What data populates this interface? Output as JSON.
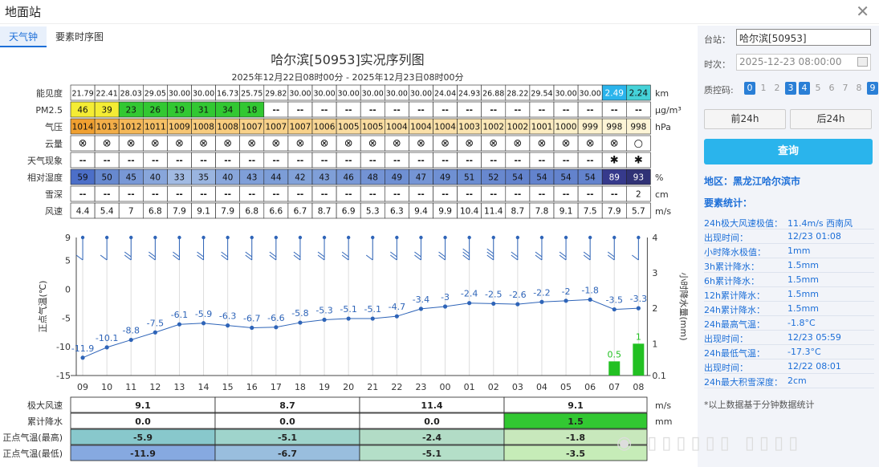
{
  "window": {
    "title": "地面站"
  },
  "tabs": [
    "天气钟",
    "要素时序图"
  ],
  "chart_title": "哈尔滨[50953]实况序列图",
  "chart_subtitle": "2025年12月22日08时00分 - 2025年12月23日08时00分",
  "hours": [
    "09",
    "10",
    "11",
    "12",
    "13",
    "14",
    "15",
    "16",
    "17",
    "18",
    "19",
    "20",
    "21",
    "22",
    "23",
    "00",
    "01",
    "02",
    "03",
    "04",
    "05",
    "06",
    "07",
    "08"
  ],
  "table_rows": [
    {
      "label": "能见度",
      "unit": "km",
      "values": [
        "21.79",
        "22.41",
        "28.03",
        "29.05",
        "30.00",
        "30.00",
        "16.73",
        "25.75",
        "29.82",
        "30.00",
        "30.00",
        "30.00",
        "30.00",
        "30.00",
        "30.00",
        "24.04",
        "24.93",
        "26.88",
        "28.22",
        "29.54",
        "30.00",
        "30.00",
        "2.49",
        "2.24"
      ],
      "colors": [
        "#fff",
        "#fff",
        "#fff",
        "#fff",
        "#fff",
        "#fff",
        "#fff",
        "#fff",
        "#fff",
        "#fff",
        "#fff",
        "#fff",
        "#fff",
        "#fff",
        "#fff",
        "#fff",
        "#fff",
        "#fff",
        "#fff",
        "#fff",
        "#fff",
        "#fff",
        "#2ab4ec",
        "#45d2d8"
      ]
    },
    {
      "label": "PM2.5",
      "unit": "μg/m³",
      "values": [
        "46",
        "39",
        "23",
        "26",
        "19",
        "31",
        "34",
        "18",
        "--",
        "--",
        "--",
        "--",
        "--",
        "--",
        "--",
        "--",
        "--",
        "--",
        "--",
        "--",
        "--",
        "--",
        "--",
        "--"
      ],
      "colors": [
        "#f4ec34",
        "#f4ec34",
        "#32c832",
        "#32c832",
        "#32c832",
        "#32c832",
        "#32c832",
        "#32c832",
        "#fff",
        "#fff",
        "#fff",
        "#fff",
        "#fff",
        "#fff",
        "#fff",
        "#fff",
        "#fff",
        "#fff",
        "#fff",
        "#fff",
        "#fff",
        "#fff",
        "#fff",
        "#fff"
      ]
    },
    {
      "label": "气压",
      "unit": "hPa",
      "values": [
        "1014",
        "1013",
        "1012",
        "1011",
        "1009",
        "1008",
        "1008",
        "1007",
        "1007",
        "1007",
        "1006",
        "1005",
        "1005",
        "1004",
        "1004",
        "1004",
        "1003",
        "1002",
        "1002",
        "1001",
        "1000",
        "999",
        "998",
        "998"
      ],
      "colors": [
        "#f0a030",
        "#f3ae48",
        "#f5b858",
        "#f5bf64",
        "#f7c673",
        "#f8cc7e",
        "#f8cc7e",
        "#f9d28a",
        "#f9d28a",
        "#f9d28a",
        "#f9d796",
        "#fadca0",
        "#fadca0",
        "#fbe0a8",
        "#fbe0a8",
        "#fbe0a8",
        "#fbe4b0",
        "#fce8b8",
        "#fce8b8",
        "#fcecc0",
        "#fcf0c8",
        "#fdf2ce",
        "#fdf5d6",
        "#fdf5d6"
      ]
    },
    {
      "label": "云量",
      "unit": "",
      "values": [
        "⊗",
        "⊗",
        "⊗",
        "⊗",
        "⊗",
        "⊗",
        "⊗",
        "⊗",
        "⊗",
        "⊗",
        "⊗",
        "⊗",
        "⊗",
        "⊗",
        "⊗",
        "⊗",
        "⊗",
        "⊗",
        "⊗",
        "⊗",
        "⊗",
        "⊗",
        "⊗",
        "○"
      ],
      "colors": []
    },
    {
      "label": "天气现象",
      "unit": "",
      "values": [
        "--",
        "--",
        "--",
        "--",
        "--",
        "--",
        "--",
        "--",
        "--",
        "--",
        "--",
        "--",
        "--",
        "--",
        "--",
        "--",
        "--",
        "--",
        "--",
        "--",
        "--",
        "--",
        "✱",
        "✱"
      ],
      "colors": []
    },
    {
      "label": "相对湿度",
      "unit": "%",
      "values": [
        "59",
        "50",
        "45",
        "40",
        "33",
        "35",
        "40",
        "43",
        "44",
        "42",
        "43",
        "46",
        "48",
        "49",
        "47",
        "49",
        "51",
        "52",
        "54",
        "54",
        "54",
        "54",
        "89",
        "93"
      ],
      "colors": [
        "#4c6fc8",
        "#6789cf",
        "#7898d6",
        "#88a6db",
        "#a2bbe3",
        "#9ab5e0",
        "#88a6db",
        "#7f9fd8",
        "#7c9dd7",
        "#82a2d9",
        "#7f9fd8",
        "#7898d6",
        "#7393d4",
        "#6f90d3",
        "#7595d5",
        "#6f90d3",
        "#6b8dd1",
        "#6888cf",
        "#6383cd",
        "#6383cd",
        "#6383cd",
        "#6383cd",
        "#363a8c",
        "#303276"
      ]
    },
    {
      "label": "雪深",
      "unit": "cm",
      "values": [
        "--",
        "--",
        "--",
        "--",
        "--",
        "--",
        "--",
        "--",
        "--",
        "--",
        "--",
        "--",
        "--",
        "--",
        "--",
        "--",
        "--",
        "--",
        "--",
        "--",
        "--",
        "--",
        "--",
        "2"
      ],
      "colors": []
    },
    {
      "label": "风速",
      "unit": "m/s",
      "values": [
        "4.4",
        "5.4",
        "7",
        "6.8",
        "7.9",
        "9.1",
        "7.9",
        "6.8",
        "6.6",
        "6.7",
        "8.7",
        "6.9",
        "5.3",
        "6.3",
        "9.4",
        "9.9",
        "10.4",
        "11.4",
        "8.7",
        "7.8",
        "9.1",
        "7.5",
        "7.9",
        "5.7"
      ],
      "colors": []
    }
  ],
  "chart_data": {
    "type": "line",
    "x": [
      "09",
      "10",
      "11",
      "12",
      "13",
      "14",
      "15",
      "16",
      "17",
      "18",
      "19",
      "20",
      "21",
      "22",
      "23",
      "00",
      "01",
      "02",
      "03",
      "04",
      "05",
      "06",
      "07",
      "08"
    ],
    "temperature": [
      -11.9,
      -10.1,
      -8.8,
      -7.5,
      -6.1,
      -5.9,
      -6.3,
      -6.7,
      -6.6,
      -5.8,
      -5.3,
      -5.1,
      -5.1,
      -4.7,
      -3.4,
      -3,
      -2.4,
      -2.5,
      -2.6,
      -2.2,
      -2,
      -1.8,
      -3.5,
      -3.3
    ],
    "precipitation": [
      null,
      null,
      null,
      null,
      null,
      null,
      null,
      null,
      null,
      null,
      null,
      null,
      null,
      null,
      null,
      null,
      null,
      null,
      null,
      null,
      null,
      null,
      0.5,
      1
    ],
    "ylabel_left": "正点气温(℃)",
    "ylabel_right": "小时降水量(mm)",
    "ylim_left": [
      -15,
      9
    ],
    "yticks_left": [
      "9",
      "5",
      "0",
      "-5",
      "-10",
      "-15"
    ],
    "ylim_right": [
      0.1,
      4
    ],
    "yticks_right": [
      "4",
      "3",
      "2",
      "1",
      "0.1"
    ],
    "series_color": "#2e64b8",
    "bar_color": "#22c022"
  },
  "summary_table": {
    "units": [
      "m/s",
      "mm",
      "",
      ""
    ],
    "rows": [
      {
        "label": "极大风速",
        "values": [
          "9.1",
          "8.7",
          "11.4",
          "9.1"
        ]
      },
      {
        "label": "累计降水",
        "values": [
          "0.0",
          "0.0",
          "0.0",
          "1.5"
        ]
      },
      {
        "label": "正点气温(最高)",
        "values": [
          "-5.9",
          "-5.1",
          "-2.4",
          "-1.8"
        ]
      },
      {
        "label": "正点气温(最低)",
        "values": [
          "-11.9",
          "-6.7",
          "-5.1",
          "-3.5"
        ]
      }
    ]
  },
  "sidebar": {
    "station_label": "台站：",
    "station_value": "哈尔滨[50953]",
    "time_label": "时次：",
    "time_value": "2025-12-23 08:00:00",
    "qc_label": "质控码:",
    "qc_codes": [
      "0",
      "1",
      "2",
      "3",
      "4",
      "5",
      "6",
      "7",
      "8",
      "9"
    ],
    "prev_label": "前24h",
    "next_label": "后24h",
    "query_label": "查询",
    "region_label": "地区：黑龙江哈尔滨市",
    "stats_title": "要素统计：",
    "stats": [
      {
        "k": "24h极大风速极值：",
        "v": "11.4m/s 西南风"
      },
      {
        "k": "出现时间：",
        "v": "12/23 01:08"
      },
      {
        "k": "小时降水极值：",
        "v": "1mm"
      },
      {
        "k": "3h累计降水：",
        "v": "1.5mm"
      },
      {
        "k": "6h累计降水：",
        "v": "1.5mm"
      },
      {
        "k": "12h累计降水：",
        "v": "1.5mm"
      },
      {
        "k": "24h累计降水：",
        "v": "1.5mm"
      },
      {
        "k": "24h最高气温：",
        "v": "-1.8°C"
      },
      {
        "k": "出现时间：",
        "v": "12/23 05:59"
      },
      {
        "k": "24h最低气温：",
        "v": "-17.3°C"
      },
      {
        "k": "出现时间：",
        "v": "12/22 08:01"
      },
      {
        "k": "24h最大积雪深度：",
        "v": "2cm"
      }
    ],
    "note": "*以上数据基于分钟数据统计"
  }
}
